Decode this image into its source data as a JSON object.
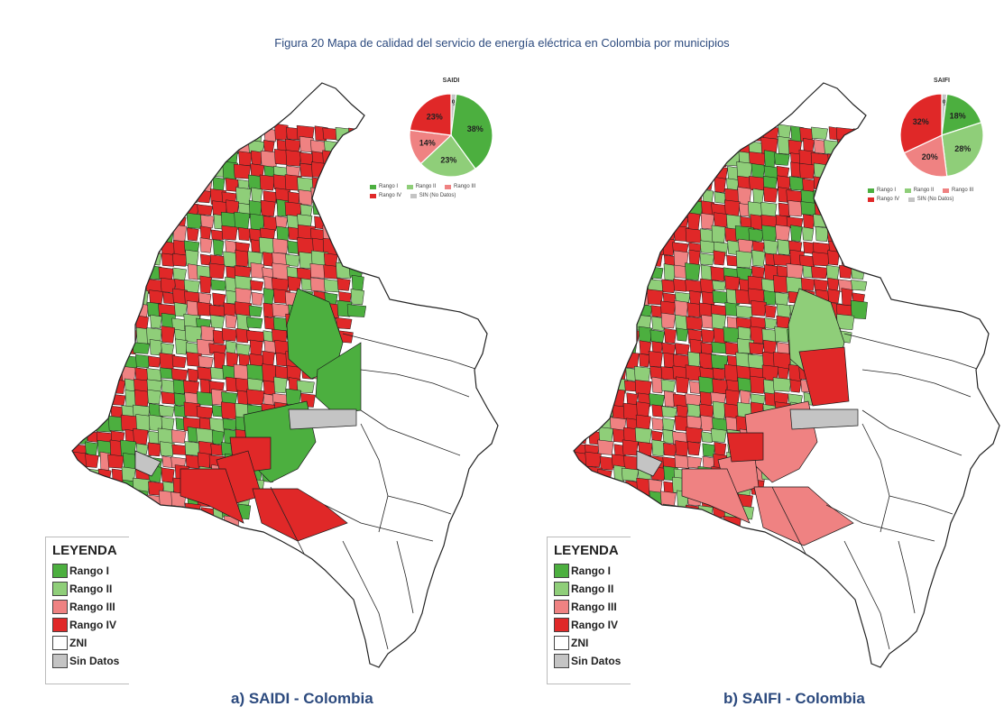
{
  "figure_title": "Figura 20 Mapa de calidad del servicio de energía eléctrica en Colombia por municipios",
  "colors": {
    "rango_i": "#4caf3f",
    "rango_ii": "#8fce79",
    "rango_iii": "#ef8282",
    "rango_iv": "#e02828",
    "zni": "#ffffff",
    "sin_datos": "#c4c4c4"
  },
  "legend": {
    "title": "LEYENDA",
    "items": [
      {
        "label": "Rango I",
        "color": "#4caf3f"
      },
      {
        "label": "Rango II",
        "color": "#8fce79"
      },
      {
        "label": "Rango III",
        "color": "#ef8282"
      },
      {
        "label": "Rango IV",
        "color": "#e02828"
      },
      {
        "label": "ZNI",
        "color": "#ffffff"
      },
      {
        "label": "Sin Datos",
        "color": "#c4c4c4"
      }
    ]
  },
  "pie_legend_labels": {
    "r1": "Rango I",
    "r2": "Rango II",
    "r3": "Rango III",
    "r4": "Rango IV",
    "sin": "SIN (No Datos)"
  },
  "panels": [
    {
      "caption": "a)   SAIDI - Colombia",
      "pie_title": "SAIDI",
      "pie": [
        {
          "label": "38%",
          "value": 38,
          "color": "#4caf3f"
        },
        {
          "label": "23%",
          "value": 23,
          "color": "#8fce79"
        },
        {
          "label": "14%",
          "value": 14,
          "color": "#ef8282"
        },
        {
          "label": "23%",
          "value": 23,
          "color": "#e02828"
        },
        {
          "label": "2%",
          "value": 2,
          "color": "#c4c4c4"
        }
      ]
    },
    {
      "caption": "b)   SAIFI - Colombia",
      "pie_title": "SAIFI",
      "pie": [
        {
          "label": "18%",
          "value": 18,
          "color": "#4caf3f"
        },
        {
          "label": "28%",
          "value": 28,
          "color": "#8fce79"
        },
        {
          "label": "20%",
          "value": 20,
          "color": "#ef8282"
        },
        {
          "label": "32%",
          "value": 32,
          "color": "#e02828"
        },
        {
          "label": "2%",
          "value": 2,
          "color": "#c4c4c4"
        }
      ]
    }
  ]
}
